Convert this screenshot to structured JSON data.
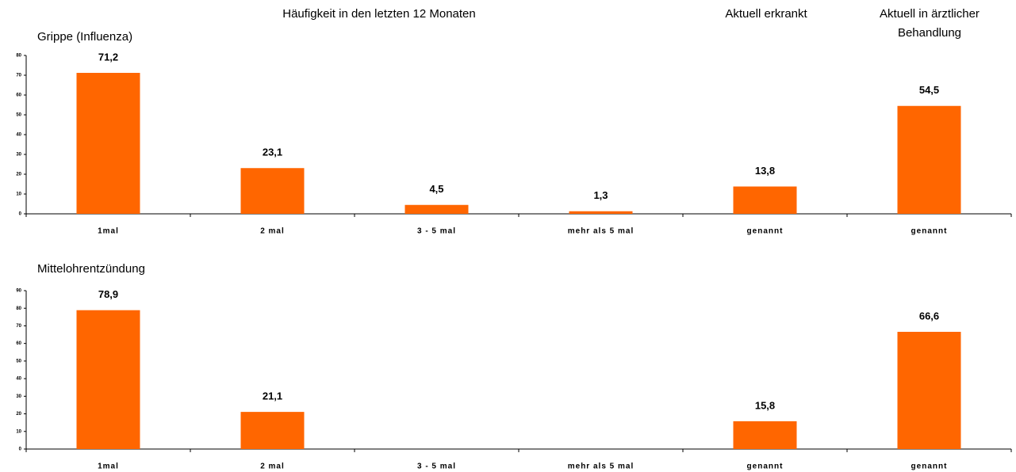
{
  "column_headers": [
    "Häufigkeit in den letzten 12 Monaten",
    "Aktuell erkrankt",
    "Aktuell in ärztlicher Behandlung"
  ],
  "chart_data": [
    {
      "type": "bar",
      "title": "Grippe (Influenza)",
      "color": "#ff6600",
      "categories": [
        "1mal",
        "2 mal",
        "3 - 5 mal",
        "mehr als 5 mal",
        "genannt",
        "genannt"
      ],
      "values": [
        71.2,
        23.1,
        4.5,
        1.3,
        13.8,
        54.5
      ],
      "value_labels": [
        "71,2",
        "23,1",
        "4,5",
        "1,3",
        "13,8",
        "54,5"
      ],
      "ylim": [
        0,
        80
      ],
      "yticks": [
        0,
        10,
        20,
        30,
        40,
        50,
        60,
        70,
        80
      ]
    },
    {
      "type": "bar",
      "title": "Mittelohrentzündung",
      "color": "#ff6600",
      "categories": [
        "1mal",
        "2 mal",
        "3 - 5 mal",
        "mehr als 5 mal",
        "genannt",
        "genannt"
      ],
      "values": [
        78.9,
        21.1,
        null,
        null,
        15.8,
        66.6
      ],
      "value_labels": [
        "78,9",
        "21,1",
        null,
        null,
        "15,8",
        "66,6"
      ],
      "ylim": [
        0,
        90
      ],
      "yticks": [
        0,
        10,
        20,
        30,
        40,
        50,
        60,
        70,
        80,
        90
      ]
    }
  ]
}
